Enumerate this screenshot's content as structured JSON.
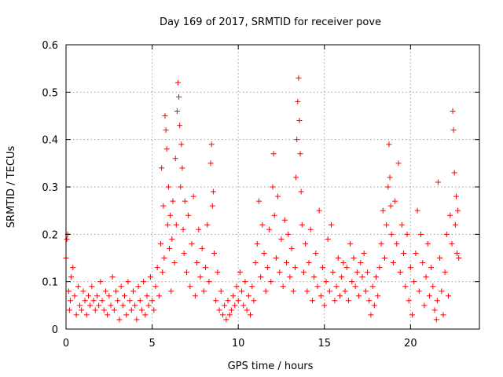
{
  "chart_data": {
    "type": "scatter",
    "title": "Day 169 of 2017, SRMTID for receiver pove",
    "xlabel": "GPS time / hours",
    "ylabel": "SRMTID / TECUs",
    "xlim": [
      0,
      24
    ],
    "ylim": [
      0,
      0.6
    ],
    "x_ticks": [
      0,
      5,
      10,
      15,
      20
    ],
    "x_tick_labels": [
      "0",
      "5",
      "10",
      "15",
      "20"
    ],
    "y_ticks": [
      0,
      0.1,
      0.2,
      0.3,
      0.4,
      0.5,
      0.6
    ],
    "y_tick_labels": [
      "0",
      "0.1",
      "0.2",
      "0.3",
      "0.4",
      "0.5",
      "0.6"
    ],
    "grid": true,
    "marker": "+",
    "color": "#ff0000",
    "series": [
      {
        "name": "SRMTID",
        "x": [
          0.0,
          0.05,
          0.1,
          0.15,
          0.2,
          0.25,
          0.3,
          0.4,
          0.5,
          0.6,
          0.7,
          0.8,
          0.9,
          1.0,
          1.1,
          1.2,
          1.3,
          1.4,
          1.5,
          1.6,
          1.7,
          1.8,
          1.9,
          2.0,
          2.1,
          2.2,
          2.3,
          2.4,
          2.5,
          2.6,
          2.7,
          2.8,
          2.9,
          3.0,
          3.1,
          3.2,
          3.3,
          3.4,
          3.5,
          3.6,
          3.7,
          3.8,
          3.9,
          4.0,
          4.1,
          4.2,
          4.3,
          4.4,
          4.5,
          4.6,
          4.7,
          4.8,
          4.9,
          5.0,
          5.1,
          5.2,
          5.3,
          5.4,
          5.5,
          5.55,
          5.6,
          5.65,
          5.7,
          5.75,
          5.8,
          5.85,
          5.9,
          5.95,
          6.0,
          6.05,
          6.1,
          6.15,
          6.2,
          6.3,
          6.35,
          6.4,
          6.45,
          6.5,
          6.55,
          6.6,
          6.65,
          6.7,
          6.75,
          6.8,
          6.85,
          6.9,
          7.0,
          7.1,
          7.2,
          7.3,
          7.4,
          7.5,
          7.6,
          7.7,
          7.8,
          7.9,
          8.0,
          8.1,
          8.2,
          8.3,
          8.4,
          8.45,
          8.5,
          8.55,
          8.6,
          8.7,
          8.8,
          8.9,
          9.0,
          9.1,
          9.2,
          9.3,
          9.4,
          9.5,
          9.6,
          9.7,
          9.8,
          9.9,
          10.0,
          10.1,
          10.2,
          10.3,
          10.4,
          10.5,
          10.6,
          10.7,
          10.8,
          10.9,
          11.0,
          11.1,
          11.2,
          11.3,
          11.4,
          11.5,
          11.6,
          11.7,
          11.8,
          11.9,
          12.0,
          12.05,
          12.1,
          12.2,
          12.3,
          12.4,
          12.5,
          12.6,
          12.7,
          12.8,
          12.9,
          13.0,
          13.1,
          13.2,
          13.3,
          13.35,
          13.4,
          13.45,
          13.5,
          13.55,
          13.6,
          13.65,
          13.7,
          13.8,
          13.9,
          14.0,
          14.1,
          14.2,
          14.3,
          14.4,
          14.5,
          14.6,
          14.7,
          14.8,
          14.9,
          15.0,
          15.1,
          15.2,
          15.3,
          15.4,
          15.5,
          15.6,
          15.7,
          15.8,
          15.9,
          16.0,
          16.1,
          16.2,
          16.3,
          16.4,
          16.5,
          16.6,
          16.7,
          16.8,
          16.9,
          17.0,
          17.1,
          17.2,
          17.3,
          17.4,
          17.5,
          17.6,
          17.7,
          17.8,
          17.9,
          18.0,
          18.1,
          18.2,
          18.3,
          18.4,
          18.5,
          18.6,
          18.7,
          18.75,
          18.8,
          18.85,
          18.9,
          19.0,
          19.1,
          19.2,
          19.3,
          19.4,
          19.5,
          19.6,
          19.7,
          19.8,
          19.9,
          20.0,
          20.1,
          20.2,
          20.3,
          20.4,
          20.5,
          20.6,
          20.7,
          20.8,
          20.9,
          21.0,
          21.1,
          21.2,
          21.3,
          21.4,
          21.5,
          21.55,
          21.6,
          21.7,
          21.8,
          21.9,
          22.0,
          22.1,
          22.2,
          22.3,
          22.4,
          22.45,
          22.5,
          22.55,
          22.6,
          22.65,
          22.7,
          22.75,
          22.8
        ],
        "y": [
          0.15,
          0.19,
          0.2,
          0.08,
          0.04,
          0.06,
          0.11,
          0.13,
          0.07,
          0.03,
          0.09,
          0.05,
          0.04,
          0.08,
          0.06,
          0.03,
          0.07,
          0.05,
          0.09,
          0.06,
          0.04,
          0.07,
          0.05,
          0.1,
          0.06,
          0.04,
          0.08,
          0.03,
          0.07,
          0.05,
          0.11,
          0.04,
          0.08,
          0.06,
          0.02,
          0.09,
          0.05,
          0.07,
          0.03,
          0.1,
          0.06,
          0.04,
          0.08,
          0.05,
          0.02,
          0.09,
          0.06,
          0.04,
          0.1,
          0.03,
          0.07,
          0.05,
          0.11,
          0.06,
          0.04,
          0.09,
          0.13,
          0.07,
          0.18,
          0.34,
          0.12,
          0.26,
          0.15,
          0.45,
          0.42,
          0.38,
          0.22,
          0.3,
          0.17,
          0.24,
          0.08,
          0.19,
          0.27,
          0.14,
          0.36,
          0.22,
          0.46,
          0.52,
          0.49,
          0.43,
          0.3,
          0.39,
          0.34,
          0.21,
          0.16,
          0.27,
          0.12,
          0.24,
          0.09,
          0.18,
          0.28,
          0.07,
          0.14,
          0.21,
          0.11,
          0.17,
          0.08,
          0.13,
          0.22,
          0.1,
          0.35,
          0.39,
          0.26,
          0.29,
          0.16,
          0.06,
          0.12,
          0.04,
          0.08,
          0.03,
          0.05,
          0.02,
          0.06,
          0.03,
          0.04,
          0.07,
          0.05,
          0.09,
          0.06,
          0.12,
          0.08,
          0.05,
          0.1,
          0.04,
          0.07,
          0.03,
          0.09,
          0.06,
          0.14,
          0.18,
          0.27,
          0.11,
          0.22,
          0.16,
          0.08,
          0.13,
          0.21,
          0.1,
          0.3,
          0.37,
          0.24,
          0.15,
          0.28,
          0.12,
          0.19,
          0.09,
          0.23,
          0.14,
          0.2,
          0.11,
          0.17,
          0.08,
          0.13,
          0.32,
          0.4,
          0.48,
          0.53,
          0.44,
          0.37,
          0.29,
          0.22,
          0.12,
          0.18,
          0.08,
          0.14,
          0.21,
          0.06,
          0.11,
          0.16,
          0.09,
          0.25,
          0.07,
          0.13,
          0.05,
          0.1,
          0.19,
          0.08,
          0.22,
          0.12,
          0.06,
          0.09,
          0.15,
          0.07,
          0.11,
          0.14,
          0.08,
          0.13,
          0.06,
          0.18,
          0.1,
          0.15,
          0.09,
          0.12,
          0.07,
          0.14,
          0.11,
          0.16,
          0.08,
          0.12,
          0.06,
          0.03,
          0.09,
          0.05,
          0.11,
          0.07,
          0.13,
          0.18,
          0.25,
          0.15,
          0.22,
          0.3,
          0.39,
          0.32,
          0.26,
          0.2,
          0.14,
          0.27,
          0.18,
          0.35,
          0.12,
          0.22,
          0.16,
          0.09,
          0.2,
          0.06,
          0.13,
          0.03,
          0.1,
          0.16,
          0.25,
          0.08,
          0.2,
          0.14,
          0.05,
          0.11,
          0.18,
          0.07,
          0.13,
          0.09,
          0.04,
          0.02,
          0.06,
          0.31,
          0.15,
          0.08,
          0.03,
          0.12,
          0.2,
          0.07,
          0.24,
          0.18,
          0.46,
          0.42,
          0.33,
          0.22,
          0.28,
          0.16,
          0.25,
          0.15
        ]
      }
    ]
  }
}
